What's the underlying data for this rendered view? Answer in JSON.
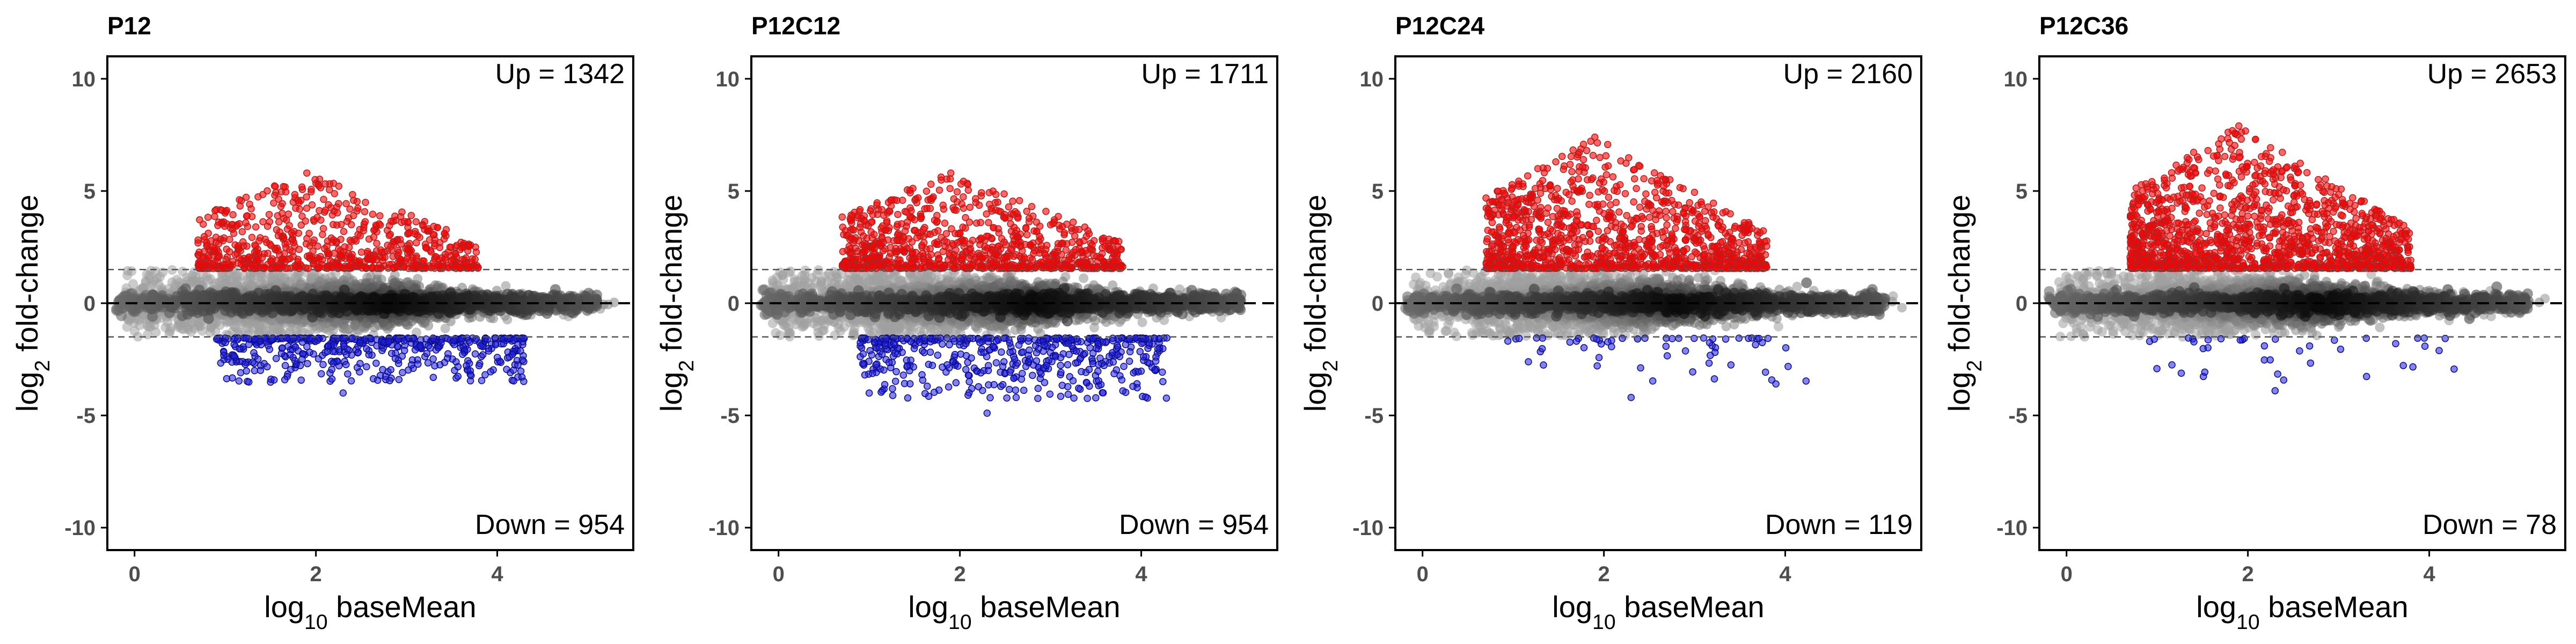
{
  "colors": {
    "up": "#ff0000",
    "up_outline": "#b22222",
    "down": "#1f1fe0",
    "down_outline": "#0d0d8c",
    "ns_dark": "#111111",
    "ns_light": "#9a9a9a",
    "axis": "#000000",
    "tick_text": "#4d4d4d",
    "threshold": "#555555"
  },
  "chart_data": [
    {
      "type": "scatter",
      "title": "P12",
      "xlabel_prefix": "log",
      "xlabel_sub": "10",
      "xlabel_suffix": " baseMean",
      "ylabel_prefix": "log",
      "ylabel_sub": "2",
      "ylabel_suffix": " fold-change",
      "xlim": [
        -0.3,
        5.5
      ],
      "ylim": [
        -11,
        11
      ],
      "xticks": [
        0,
        2,
        4
      ],
      "yticks": [
        -10,
        -5,
        0,
        5,
        10
      ],
      "thresholds": [
        1.5,
        -1.5
      ],
      "up_label": "Up = 1342",
      "down_label": "Down = 954",
      "up_count": 1342,
      "down_count": 954,
      "max_up_y": 5.8,
      "min_down_y": -4.0,
      "grid": false
    },
    {
      "type": "scatter",
      "title": "P12C12",
      "xlabel_prefix": "log",
      "xlabel_sub": "10",
      "xlabel_suffix": " baseMean",
      "ylabel_prefix": "log",
      "ylabel_sub": "2",
      "ylabel_suffix": " fold-change",
      "xlim": [
        -0.3,
        5.5
      ],
      "ylim": [
        -11,
        11
      ],
      "xticks": [
        0,
        2,
        4
      ],
      "yticks": [
        -10,
        -5,
        0,
        5,
        10
      ],
      "thresholds": [
        1.5,
        -1.5
      ],
      "up_label": "Up = 1711",
      "down_label": "Down = 954",
      "up_count": 1711,
      "down_count": 954,
      "max_up_y": 5.8,
      "min_down_y": -4.9,
      "grid": false
    },
    {
      "type": "scatter",
      "title": "P12C24",
      "xlabel_prefix": "log",
      "xlabel_sub": "10",
      "xlabel_suffix": " baseMean",
      "ylabel_prefix": "log",
      "ylabel_sub": "2",
      "ylabel_suffix": " fold-change",
      "xlim": [
        -0.3,
        5.5
      ],
      "ylim": [
        -11,
        11
      ],
      "xticks": [
        0,
        2,
        4
      ],
      "yticks": [
        -10,
        -5,
        0,
        5,
        10
      ],
      "thresholds": [
        1.5,
        -1.5
      ],
      "up_label": "Up = 2160",
      "down_label": "Down = 119",
      "up_count": 2160,
      "down_count": 119,
      "max_up_y": 7.4,
      "min_down_y": -4.2,
      "grid": false
    },
    {
      "type": "scatter",
      "title": "P12C36",
      "xlabel_prefix": "log",
      "xlabel_sub": "10",
      "xlabel_suffix": " baseMean",
      "ylabel_prefix": "log",
      "ylabel_sub": "2",
      "ylabel_suffix": " fold-change",
      "xlim": [
        -0.3,
        5.5
      ],
      "ylim": [
        -11,
        11
      ],
      "xticks": [
        0,
        2,
        4
      ],
      "yticks": [
        -10,
        -5,
        0,
        5,
        10
      ],
      "thresholds": [
        1.5,
        -1.5
      ],
      "up_label": "Up = 2653",
      "down_label": "Down = 78",
      "up_count": 2653,
      "down_count": 78,
      "max_up_y": 7.9,
      "min_down_y": -3.9,
      "grid": false
    }
  ]
}
